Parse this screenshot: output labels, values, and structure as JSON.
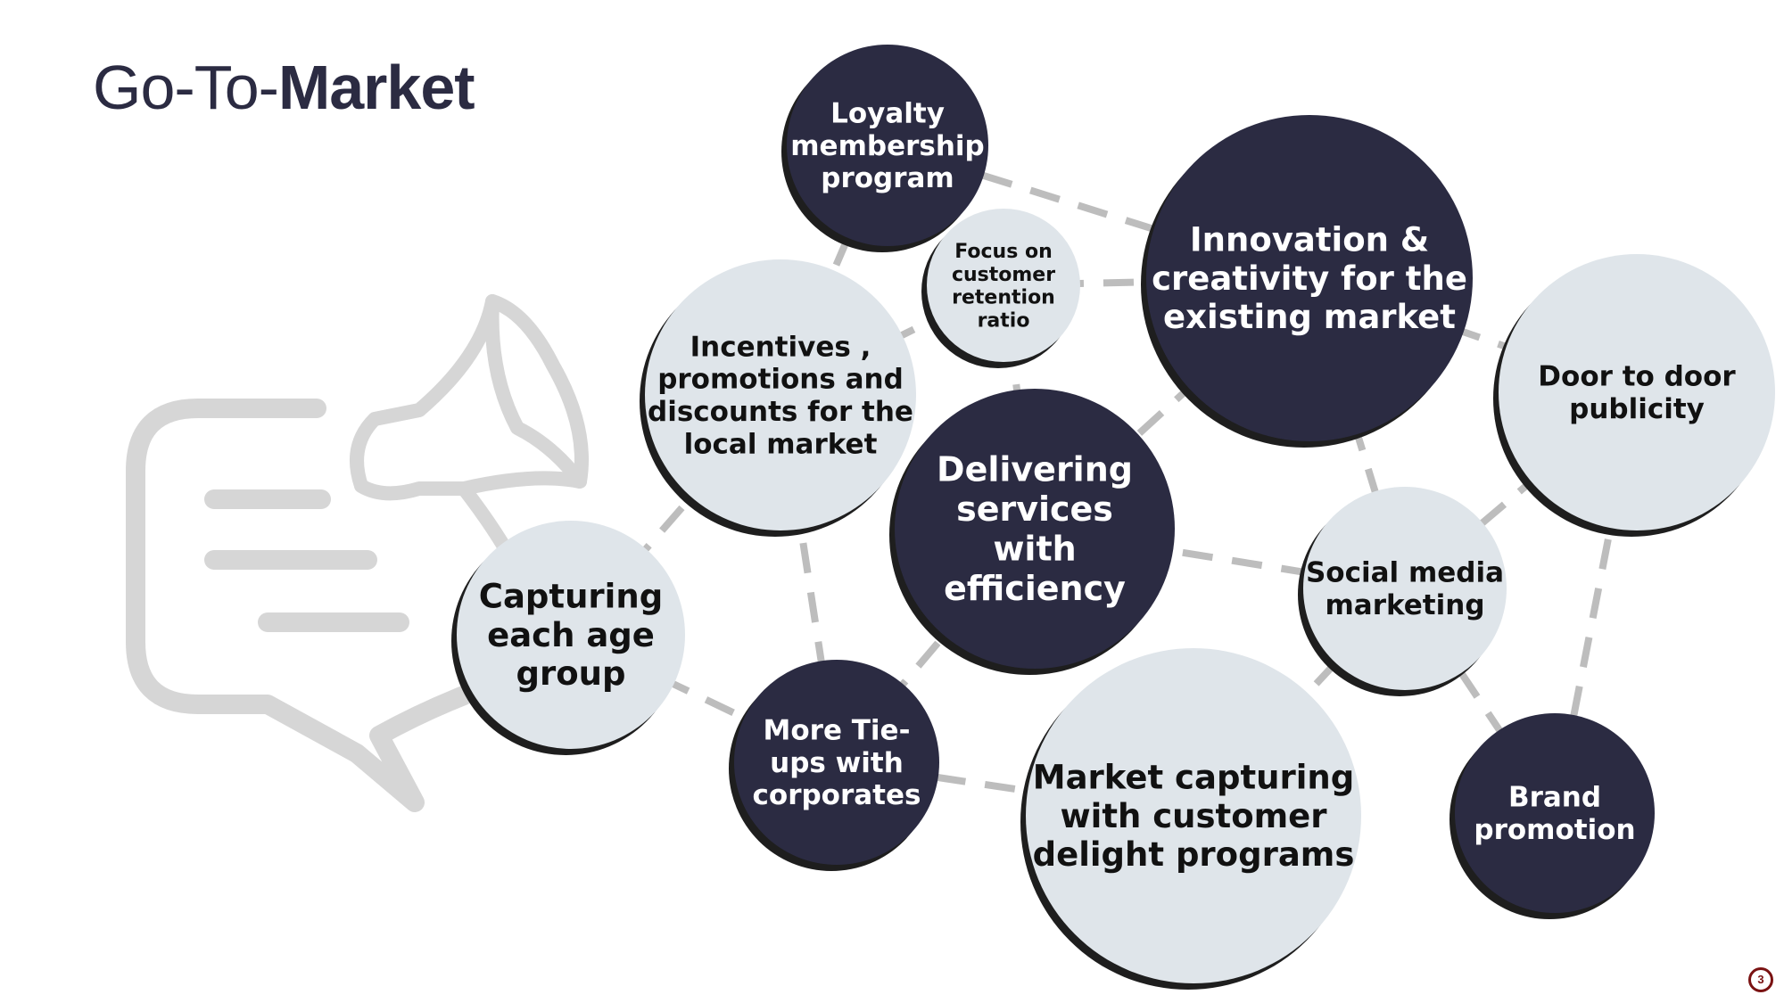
{
  "slide": {
    "title_light": "Go-To-",
    "title_bold": "Market",
    "page_number": "3"
  },
  "colors": {
    "dark": "#2b2b42",
    "light": "#dfe5ea",
    "edge": "#bdbdbd",
    "icon": "#d6d6d6",
    "shadow": "#1e1e1e"
  },
  "icon": "megaphone-speech-bubble-icon",
  "nodes": [
    {
      "id": "loyalty",
      "lines": [
        "Loyalty",
        "membership",
        "program"
      ],
      "style": "dark"
    },
    {
      "id": "focus",
      "lines": [
        "Focus on",
        "customer",
        "retention",
        "ratio"
      ],
      "style": "light"
    },
    {
      "id": "innovation",
      "lines": [
        "Innovation &",
        "creativity for the",
        "existing market"
      ],
      "style": "dark"
    },
    {
      "id": "incentives",
      "lines": [
        "Incentives ,",
        "promotions and",
        "discounts for the",
        "local market"
      ],
      "style": "light"
    },
    {
      "id": "door",
      "lines": [
        "Door to door",
        "publicity"
      ],
      "style": "light"
    },
    {
      "id": "delivering",
      "lines": [
        "Delivering",
        "services",
        "with",
        "efficiency"
      ],
      "style": "dark"
    },
    {
      "id": "capturing",
      "lines": [
        "Capturing",
        "each age",
        "group"
      ],
      "style": "light"
    },
    {
      "id": "social",
      "lines": [
        "Social media",
        "marketing"
      ],
      "style": "light"
    },
    {
      "id": "tieups",
      "lines": [
        "More Tie-",
        "ups with",
        "corporates"
      ],
      "style": "dark"
    },
    {
      "id": "market",
      "lines": [
        "Market capturing",
        "with customer",
        "delight programs"
      ],
      "style": "light"
    },
    {
      "id": "brand",
      "lines": [
        "Brand",
        "promotion"
      ],
      "style": "dark"
    }
  ],
  "edges": [
    [
      "loyalty",
      "innovation"
    ],
    [
      "loyalty",
      "incentives"
    ],
    [
      "focus",
      "innovation"
    ],
    [
      "focus",
      "incentives"
    ],
    [
      "focus",
      "delivering"
    ],
    [
      "innovation",
      "delivering"
    ],
    [
      "innovation",
      "door"
    ],
    [
      "innovation",
      "social"
    ],
    [
      "incentives",
      "capturing"
    ],
    [
      "incentives",
      "tieups"
    ],
    [
      "delivering",
      "social"
    ],
    [
      "delivering",
      "tieups"
    ],
    [
      "capturing",
      "tieups"
    ],
    [
      "tieups",
      "market"
    ],
    [
      "social",
      "door"
    ],
    [
      "social",
      "market"
    ],
    [
      "social",
      "brand"
    ],
    [
      "door",
      "brand"
    ]
  ]
}
